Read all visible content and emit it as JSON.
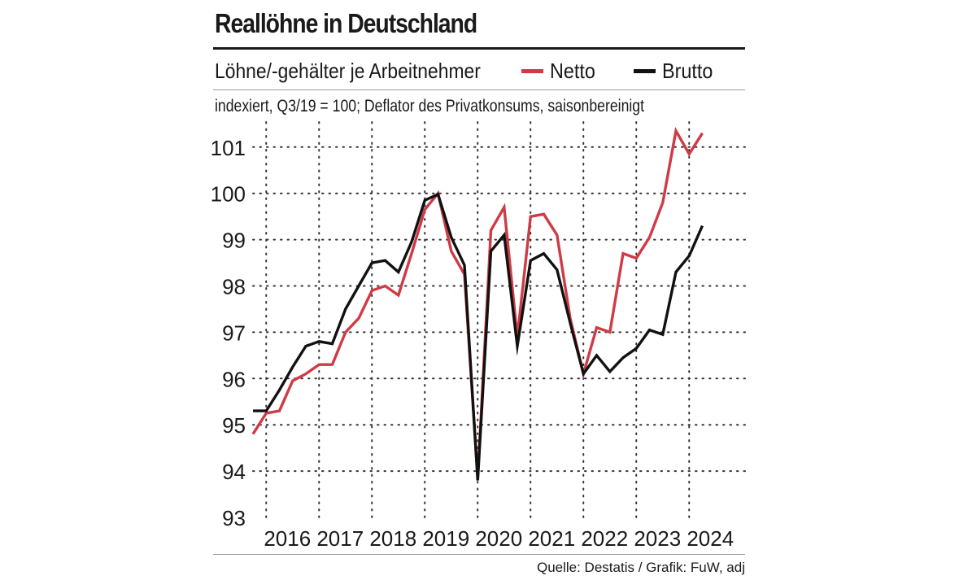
{
  "header": {
    "title": "Reallöhne in Deutschland",
    "subtitle": "Löhne/-gehälter je Arbeitnehmer",
    "note": "indexiert, Q3/19 = 100; Deflator des Privatkonsums,  saisonbereinigt"
  },
  "legend": [
    {
      "label": "Netto",
      "color": "#cf3b45"
    },
    {
      "label": "Brutto",
      "color": "#111111"
    }
  ],
  "footer": {
    "source": "Quelle: Destatis / Grafik: FuW, adj"
  },
  "chart_data": {
    "type": "line",
    "title": "Reallöhne in Deutschland",
    "ylim": [
      93,
      101.5
    ],
    "y_ticks": [
      93,
      94,
      95,
      96,
      97,
      98,
      99,
      100,
      101
    ],
    "x_year_labels": [
      "2016",
      "2017",
      "2018",
      "2019",
      "2020",
      "2021",
      "2022",
      "2023",
      "2024"
    ],
    "x_start": 2015.75,
    "x_step": 0.25,
    "grid": true,
    "series": [
      {
        "name": "Netto",
        "color": "#cf3b45",
        "values": [
          94.8,
          95.25,
          95.3,
          95.95,
          96.1,
          96.3,
          96.3,
          97.0,
          97.3,
          97.9,
          98.0,
          97.8,
          98.7,
          99.65,
          100.0,
          98.75,
          98.25,
          93.85,
          99.2,
          99.7,
          96.9,
          99.5,
          99.55,
          99.1,
          97.3,
          96.1,
          97.1,
          97.0,
          98.7,
          98.6,
          99.05,
          99.8,
          101.35,
          100.85,
          101.3
        ]
      },
      {
        "name": "Brutto",
        "color": "#111111",
        "values": [
          95.3,
          95.3,
          95.75,
          96.25,
          96.7,
          96.8,
          96.75,
          97.5,
          98.0,
          98.5,
          98.55,
          98.3,
          98.95,
          99.85,
          99.98,
          99.05,
          98.45,
          93.8,
          98.75,
          99.1,
          96.7,
          98.55,
          98.7,
          98.35,
          97.2,
          96.1,
          96.5,
          96.15,
          96.45,
          96.65,
          97.05,
          96.95,
          98.3,
          98.65,
          99.3
        ]
      }
    ]
  }
}
